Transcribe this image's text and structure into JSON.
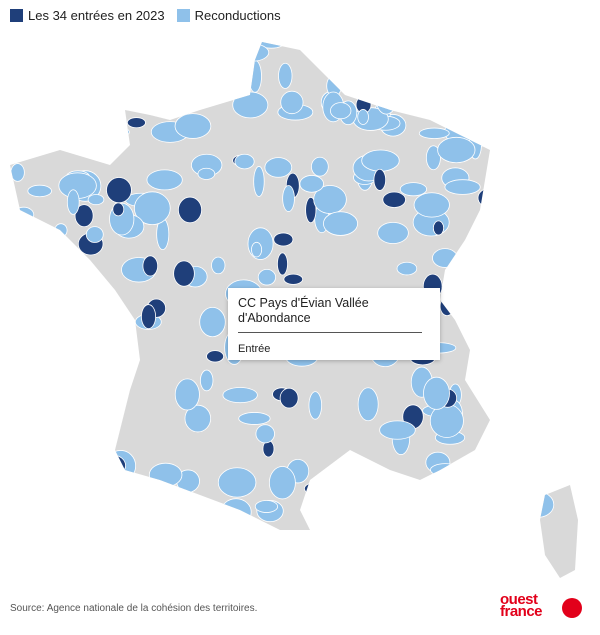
{
  "legend": {
    "items": [
      {
        "label": "Les 34 entrées en 2023",
        "color": "#1f3f7a"
      },
      {
        "label": "Reconductions",
        "color": "#8fc1ea"
      }
    ]
  },
  "tooltip": {
    "title": "CC Pays d'Évian Vallée d'Abondance",
    "status": "Entrée"
  },
  "footer": {
    "source": "Source: Agence nationale de la cohésion des territoires.",
    "logo": [
      "ouest",
      "france"
    ]
  }
}
